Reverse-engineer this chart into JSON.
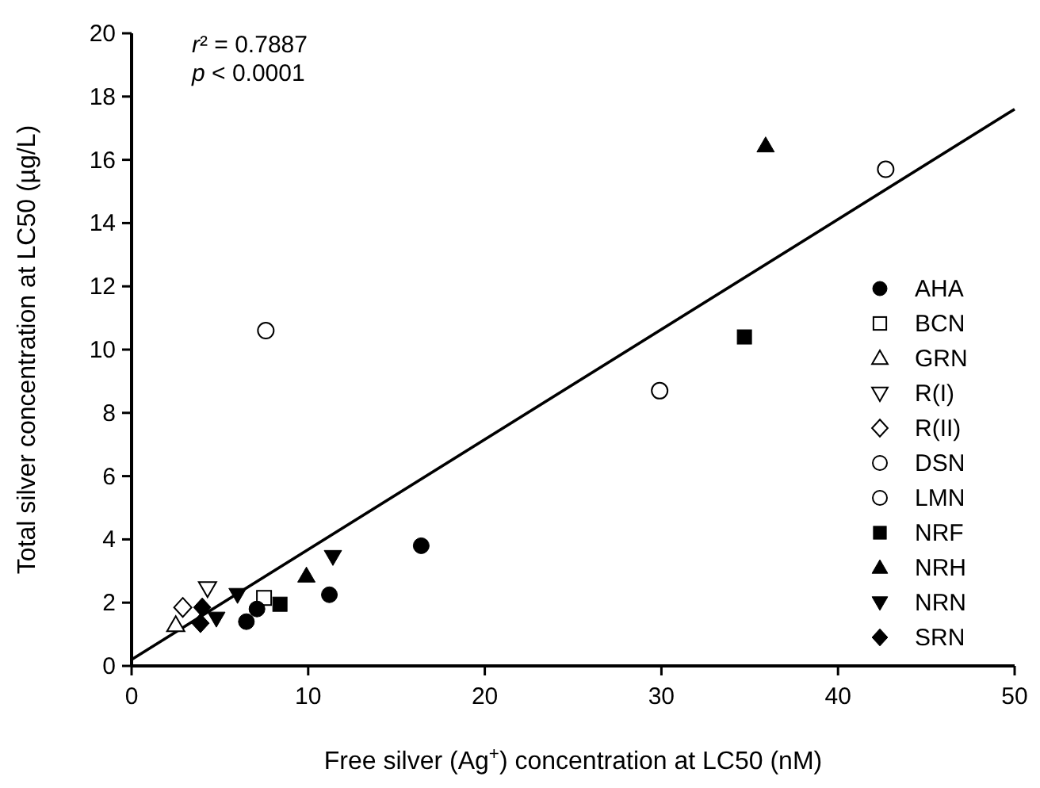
{
  "chart_data": {
    "type": "scatter",
    "xlabel": "Free silver (Ag$^{+}$) concentration at LC50 (nM)",
    "ylabel": "Total silver concentration at LC50 (µg/L)",
    "xlim": [
      0,
      50
    ],
    "xticks": [
      0,
      10,
      20,
      30,
      40,
      50
    ],
    "ylim": [
      0,
      20
    ],
    "yticks": [
      0,
      2,
      4,
      6,
      8,
      10,
      12,
      14,
      16,
      18,
      20
    ],
    "grid": false,
    "legend": "right",
    "annotations": [
      "r² = 0.7887",
      "p < 0.0001"
    ],
    "series": [
      {
        "name": "AHA",
        "color": "#000000",
        "marker": "circle",
        "x": [
          6.5,
          7.1,
          11.2,
          16.4
        ],
        "values": [
          1.4,
          1.8,
          2.25,
          3.8
        ]
      },
      {
        "name": "BCN",
        "color": "#000000",
        "marker": "square-open",
        "x": [
          7.5
        ],
        "values": [
          2.15
        ]
      },
      {
        "name": "GRN",
        "color": "#000000",
        "marker": "triangle-open",
        "x": [
          2.5
        ],
        "values": [
          1.3
        ]
      },
      {
        "name": "R(I)",
        "color": "#000000",
        "marker": "triangle-down-open",
        "x": [
          4.3
        ],
        "values": [
          2.45
        ]
      },
      {
        "name": "R(II)",
        "color": "#000000",
        "marker": "diamond-open",
        "x": [
          2.9
        ],
        "values": [
          1.85
        ]
      },
      {
        "name": "DSN",
        "color": "#000000",
        "marker": "circle-open",
        "x": [
          7.6
        ],
        "values": [
          10.6
        ]
      },
      {
        "name": "LMN",
        "color": "#000000",
        "marker": "circle-open",
        "x": [
          29.9,
          42.7
        ],
        "values": [
          8.7,
          15.7
        ]
      },
      {
        "name": "NRF",
        "color": "#000000",
        "marker": "square",
        "x": [
          8.4,
          34.7
        ],
        "values": [
          1.95,
          10.4
        ]
      },
      {
        "name": "NRH",
        "color": "#000000",
        "marker": "triangle",
        "x": [
          9.9,
          35.9
        ],
        "values": [
          2.85,
          16.45
        ]
      },
      {
        "name": "NRN",
        "color": "#000000",
        "marker": "triangle-down",
        "x": [
          4.8,
          6.0,
          11.4
        ],
        "values": [
          1.5,
          2.25,
          3.45
        ]
      },
      {
        "name": "SRN",
        "color": "#000000",
        "marker": "diamond",
        "x": [
          3.9,
          4.0
        ],
        "values": [
          1.35,
          1.85
        ]
      },
      {
        "type": "line",
        "color": "#000000",
        "marker": "none",
        "line_style": "solid",
        "x": [
          0,
          50
        ],
        "values": [
          0.2,
          17.6
        ]
      }
    ]
  }
}
